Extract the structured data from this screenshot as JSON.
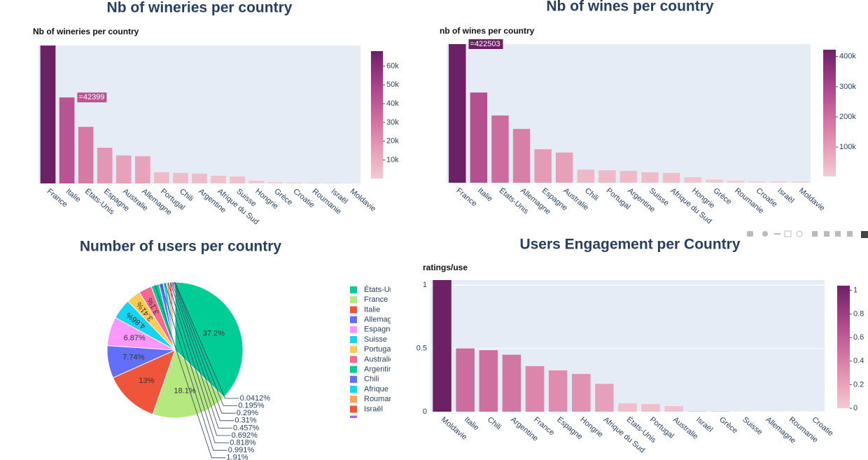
{
  "chart_data": [
    {
      "type": "bar",
      "title": "Nb of wineries per country",
      "subtitle": "Nb of wineries per country",
      "categories": [
        "France",
        "Italie",
        "États-Unis",
        "Espagne",
        "Australie",
        "Allemagne",
        "Portugal",
        "Chili",
        "Argentine",
        "Afrique du Sud",
        "Suisse",
        "Hongrie",
        "Grèce",
        "Croatie",
        "Roumanie",
        "Israël",
        "Moldavie"
      ],
      "values": [
        68000,
        42399,
        27900,
        17600,
        13800,
        13400,
        5500,
        5200,
        4800,
        3800,
        3400,
        1400,
        700,
        400,
        350,
        300,
        100
      ],
      "ylim": [
        0,
        68000
      ],
      "hover_label": "=42399",
      "colorscale": [
        "#f3cbd3",
        "#eaa9bd",
        "#dd88ac",
        "#ca699d",
        "#b14d8e",
        "#91357d",
        "#6c2167"
      ],
      "colorbar_ticks": [
        {
          "value": 10000,
          "label": "10k"
        },
        {
          "value": 20000,
          "label": "20k"
        },
        {
          "value": 30000,
          "label": "30k"
        },
        {
          "value": 40000,
          "label": "40k"
        },
        {
          "value": 50000,
          "label": "50k"
        },
        {
          "value": 60000,
          "label": "60k"
        }
      ],
      "grid": false
    },
    {
      "type": "bar",
      "title": "Nb of wines per country",
      "subtitle": "nb of wines per country",
      "categories": [
        "France",
        "Italie",
        "États-Unis",
        "Allemagne",
        "Espagne",
        "Australie",
        "Chili",
        "Portugal",
        "Argentine",
        "Suisse",
        "Afrique du Sud",
        "Hongrie",
        "Grèce",
        "Roumanie",
        "Croatie",
        "Israël",
        "Moldavie"
      ],
      "values": [
        422503,
        275000,
        205000,
        164000,
        102000,
        92000,
        40000,
        38000,
        36000,
        32000,
        30000,
        17000,
        10000,
        6000,
        4000,
        4000,
        3000
      ],
      "ylim": [
        0,
        422503
      ],
      "hover_label": "=422503",
      "colorscale": [
        "#f3cbd3",
        "#eaa9bd",
        "#dd88ac",
        "#ca699d",
        "#b14d8e",
        "#91357d",
        "#6c2167"
      ],
      "colorbar_ticks": [
        {
          "value": 100000,
          "label": "100k"
        },
        {
          "value": 200000,
          "label": "200k"
        },
        {
          "value": 300000,
          "label": "300k"
        },
        {
          "value": 400000,
          "label": "400k"
        }
      ],
      "grid": false
    },
    {
      "type": "pie",
      "title": "Number of users per country",
      "categories": [
        "États-Unis",
        "France",
        "Italie",
        "Allemagne",
        "Espagne",
        "Suisse",
        "Portugal",
        "Australie",
        "Argentine",
        "Chili",
        "Afrique du Sud",
        "Roumanie",
        "Israël",
        null,
        null,
        null,
        null
      ],
      "values": [
        37.2,
        18.1,
        13,
        7.74,
        6.87,
        4.86,
        3.41,
        3.1,
        1.91,
        0.991,
        0.818,
        0.692,
        0.457,
        0.31,
        0.29,
        0.195,
        0.0412
      ],
      "value_labels": [
        "37.2%",
        "18.1%",
        "13%",
        "7.74%",
        "6.87%",
        "4.86%",
        "3.41%",
        "3.1%",
        "1.91%",
        "0.991%",
        "0.818%",
        "0.692%",
        "0.457%",
        "0.31%",
        "0.29%",
        "0.195%",
        "0.0412%"
      ],
      "colors": [
        "#00cc96",
        "#b6e880",
        "#ef553b",
        "#636efa",
        "#ff97ff",
        "#19d3f3",
        "#fecb52",
        "#ff6692",
        "#00cc96",
        "#636efa",
        "#19d3f3",
        "#ffa15a",
        "#ef553b",
        "#ab63fa",
        "#ff6692",
        "#b6e880",
        "#ff97ff"
      ]
    },
    {
      "type": "bar",
      "title": "Users Engagement per Country",
      "subtitle": "ratings/use",
      "categories": [
        "Moldavie",
        "Italie",
        "Chili",
        "Argentine",
        "France",
        "Espagne",
        "Hongrie",
        "Afrique du Sud",
        "États-Unis",
        "Portugal",
        "Australie",
        "Israël",
        "Grèce",
        "Suisse",
        "Allemagne",
        "Roumanie",
        "Croatie"
      ],
      "values": [
        1.04,
        0.5,
        0.486,
        0.45,
        0.36,
        0.326,
        0.298,
        0.22,
        0.066,
        0.06,
        0.044,
        0.006,
        0.005,
        0.001,
        0.001,
        0.001,
        0.001
      ],
      "ylim": [
        0,
        1.04
      ],
      "yticks": [
        0,
        0.5,
        1
      ],
      "colorscale": [
        "#f3cbd3",
        "#eaa9bd",
        "#dd88ac",
        "#ca699d",
        "#b14d8e",
        "#91357d",
        "#6c2167"
      ],
      "colorbar_ticks": [
        0,
        0.2,
        0.4,
        0.6,
        0.8,
        1
      ],
      "grid": true
    }
  ]
}
